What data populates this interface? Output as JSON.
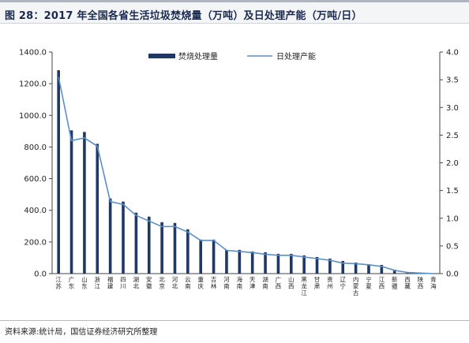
{
  "header": {
    "title": "图 28：2017 年全国各省生活垃圾焚烧量（万吨）及日处理产能（万吨/日）"
  },
  "footer": {
    "source": "资料来源:统计局，国信证券经济研究所整理"
  },
  "colors": {
    "bar": "#1f3864",
    "line": "#5b8fc7",
    "axis": "#444444"
  },
  "chart_data": {
    "type": "bar",
    "categories": [
      "江苏",
      "广东",
      "山东",
      "浙江",
      "福建",
      "四川",
      "湖北",
      "安徽",
      "北京",
      "河北",
      "云南",
      "重庆",
      "吉林",
      "河南",
      "海南",
      "天津",
      "湖南",
      "广西",
      "山西",
      "黑龙江",
      "甘肃",
      "贵州",
      "辽宁",
      "内蒙古",
      "宁夏",
      "江西",
      "新疆",
      "西藏",
      "陕西",
      "青海"
    ],
    "series": [
      {
        "name": "焚烧处理量",
        "axis": "left",
        "values": [
          1285,
          905,
          895,
          820,
          475,
          455,
          385,
          360,
          325,
          320,
          280,
          215,
          215,
          150,
          150,
          140,
          135,
          125,
          125,
          115,
          105,
          95,
          80,
          70,
          60,
          55,
          25,
          10,
          4,
          2
        ]
      },
      {
        "name": "日处理产能",
        "axis": "right",
        "type": "line",
        "values": [
          3.55,
          2.4,
          2.45,
          2.3,
          1.3,
          1.25,
          1.05,
          0.95,
          0.85,
          0.85,
          0.75,
          0.6,
          0.6,
          0.42,
          0.4,
          0.38,
          0.35,
          0.33,
          0.33,
          0.3,
          0.27,
          0.24,
          0.19,
          0.18,
          0.16,
          0.13,
          0.06,
          0.02,
          0.01,
          0.0
        ]
      }
    ],
    "y_left": {
      "ylim": [
        0,
        1400
      ],
      "ticks": [
        "0.0",
        "200.0",
        "400.0",
        "600.0",
        "800.0",
        "1000.0",
        "1200.0",
        "1400.0"
      ]
    },
    "y_right": {
      "ylim": [
        0,
        4
      ],
      "ticks": [
        "0.0",
        "0.5",
        "1.0",
        "1.5",
        "2.0",
        "2.5",
        "3.0",
        "3.5",
        "4.0"
      ]
    },
    "legend": {
      "placement": "top-center"
    },
    "grid": false
  }
}
